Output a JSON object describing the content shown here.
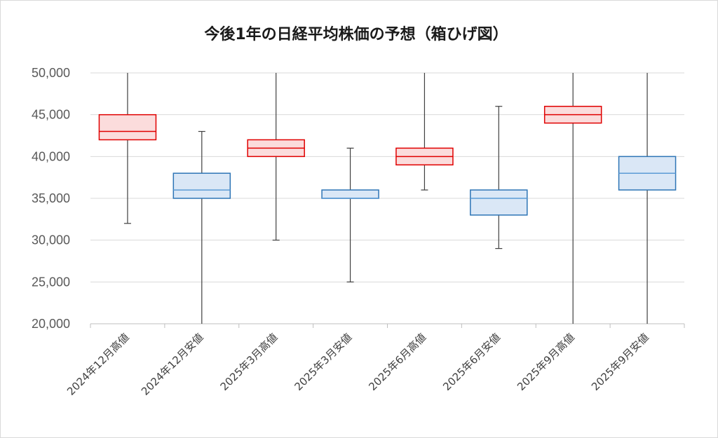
{
  "chart_data": {
    "type": "box",
    "title": "今後1年の日経平均株価の予想（箱ひげ図）",
    "ylim": [
      20000,
      50000
    ],
    "yticks": [
      "20,000",
      "25,000",
      "30,000",
      "35,000",
      "40,000",
      "45,000",
      "50,000"
    ],
    "ytick_values": [
      20000,
      25000,
      30000,
      35000,
      40000,
      45000,
      50000
    ],
    "grid": true,
    "legend": "none",
    "categories": [
      "2024年12月高値",
      "2024年12月安値",
      "2025年3月高値",
      "2025年3月安値",
      "2025年6月高値",
      "2025年6月安値",
      "2025年9月高値",
      "2025年9月安値"
    ],
    "boxes": [
      {
        "min": 32000,
        "q1": 42000,
        "median": 43000,
        "q3": 45000,
        "max": 50000,
        "kind": "high"
      },
      {
        "min": 20000,
        "q1": 35000,
        "median": 36000,
        "q3": 38000,
        "max": 43000,
        "kind": "low"
      },
      {
        "min": 30000,
        "q1": 40000,
        "median": 41000,
        "q3": 42000,
        "max": 50000,
        "kind": "high"
      },
      {
        "min": 25000,
        "q1": 35000,
        "median": 35000,
        "q3": 36000,
        "max": 41000,
        "kind": "low"
      },
      {
        "min": 36000,
        "q1": 39000,
        "median": 40000,
        "q3": 41000,
        "max": 50000,
        "kind": "high"
      },
      {
        "min": 29000,
        "q1": 33000,
        "median": 35000,
        "q3": 36000,
        "max": 46000,
        "kind": "low"
      },
      {
        "min": 20000,
        "q1": 44000,
        "median": 45000,
        "q3": 46000,
        "max": 50000,
        "kind": "high"
      },
      {
        "min": 20000,
        "q1": 36000,
        "median": 38000,
        "q3": 40000,
        "max": 50000,
        "kind": "low"
      }
    ],
    "colors": {
      "high_stroke": "#e00000",
      "high_fill": "#fbdcdc",
      "high_median": "#e00000",
      "low_stroke": "#2e75b6",
      "low_fill": "#dae7f6",
      "low_median": "#5b9bd5",
      "whisker": "#404040",
      "grid": "#d9d9d9",
      "axis": "#bfbfbf"
    }
  }
}
